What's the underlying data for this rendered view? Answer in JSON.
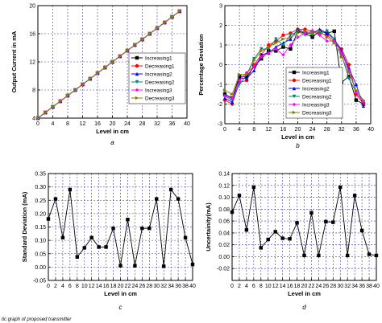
{
  "caption": "tic graph of proposed transmitter",
  "chart_data": [
    {
      "id": "a",
      "type": "line",
      "panel_label": "a",
      "xlabel": "Level in cm",
      "ylabel": "Output Current in mA",
      "xlim": [
        0,
        40
      ],
      "ylim": [
        4,
        20
      ],
      "xticks": [
        "0",
        "4",
        "8",
        "12",
        "16",
        "20",
        "24",
        "28",
        "32",
        "36",
        "40"
      ],
      "yticks": [
        "4",
        "8",
        "12",
        "16",
        "20"
      ],
      "grid": true,
      "legend_position": "bottom-right",
      "x": [
        0,
        2,
        4,
        6,
        8,
        10,
        12,
        14,
        16,
        18,
        20,
        22,
        24,
        26,
        28,
        30,
        32,
        34,
        36,
        38
      ],
      "series": [
        {
          "name": "Increasing1",
          "color": "#000000",
          "marker": "square",
          "values": [
            4.0,
            4.8,
            5.6,
            6.4,
            7.2,
            8.0,
            8.8,
            9.6,
            10.4,
            11.2,
            12.0,
            12.8,
            13.6,
            14.4,
            15.2,
            16.0,
            16.8,
            17.6,
            18.4,
            19.2
          ]
        },
        {
          "name": "Decreasing1",
          "color": "#ff0000",
          "marker": "circle",
          "values": [
            4.0,
            4.8,
            5.6,
            6.4,
            7.2,
            8.0,
            8.8,
            9.6,
            10.4,
            11.2,
            12.0,
            12.8,
            13.6,
            14.4,
            15.2,
            16.0,
            16.8,
            17.6,
            18.4,
            19.2
          ]
        },
        {
          "name": "Increasing2",
          "color": "#0000ff",
          "marker": "triangle-up",
          "values": [
            4.0,
            4.8,
            5.6,
            6.4,
            7.2,
            8.0,
            8.8,
            9.6,
            10.4,
            11.2,
            12.0,
            12.8,
            13.6,
            14.4,
            15.2,
            16.0,
            16.8,
            17.6,
            18.4,
            19.2
          ]
        },
        {
          "name": "Decreasing2",
          "color": "#008080",
          "marker": "triangle-down",
          "values": [
            4.0,
            4.8,
            5.6,
            6.4,
            7.2,
            8.0,
            8.8,
            9.6,
            10.4,
            11.2,
            12.0,
            12.8,
            13.6,
            14.4,
            15.2,
            16.0,
            16.8,
            17.6,
            18.4,
            19.2
          ]
        },
        {
          "name": "Increasing3",
          "color": "#ff00ff",
          "marker": "diamond",
          "values": [
            4.0,
            4.8,
            5.6,
            6.4,
            7.2,
            8.0,
            8.8,
            9.6,
            10.4,
            11.2,
            12.0,
            12.8,
            13.6,
            14.4,
            15.2,
            16.0,
            16.8,
            17.6,
            18.4,
            19.2
          ]
        },
        {
          "name": "Decreasing3",
          "color": "#808000",
          "marker": "triangle-right",
          "values": [
            4.0,
            4.8,
            5.6,
            6.4,
            7.2,
            8.0,
            8.8,
            9.6,
            10.4,
            11.2,
            12.0,
            12.8,
            13.6,
            14.4,
            15.2,
            16.0,
            16.8,
            17.6,
            18.4,
            19.2
          ]
        }
      ]
    },
    {
      "id": "b",
      "type": "line",
      "panel_label": "b",
      "xlabel": "Level in cm",
      "ylabel": "Percentage Deviation",
      "xlim": [
        0,
        40
      ],
      "ylim": [
        -3,
        3
      ],
      "xticks": [
        "0",
        "4",
        "8",
        "12",
        "16",
        "20",
        "24",
        "28",
        "32",
        "36",
        "40"
      ],
      "yticks": [
        "-3",
        "-2",
        "-1",
        "0",
        "1",
        "2",
        "3"
      ],
      "grid": true,
      "legend_position": "bottom-center",
      "x": [
        0,
        2,
        4,
        6,
        8,
        10,
        12,
        14,
        16,
        18,
        20,
        22,
        24,
        26,
        28,
        30,
        32,
        34,
        36,
        38
      ],
      "series": [
        {
          "name": "Increasing1",
          "color": "#000000",
          "marker": "square",
          "values": [
            -1.5,
            -1.7,
            -0.6,
            -0.6,
            -0.1,
            0.3,
            0.7,
            0.7,
            0.9,
            0.8,
            1.7,
            1.6,
            1.4,
            1.7,
            1.6,
            1.7,
            -0.9,
            -0.6,
            -1.8,
            -2.0
          ]
        },
        {
          "name": "Decreasing1",
          "color": "#ff0000",
          "marker": "circle",
          "values": [
            -1.8,
            -2.0,
            -0.9,
            -0.8,
            0.0,
            0.5,
            1.0,
            1.2,
            1.5,
            1.6,
            1.8,
            1.8,
            1.7,
            1.6,
            1.5,
            1.2,
            0.8,
            0.0,
            -1.5,
            -2.0
          ]
        },
        {
          "name": "Increasing2",
          "color": "#0000ff",
          "marker": "triangle-up",
          "values": [
            -1.7,
            -1.9,
            -0.7,
            -0.7,
            -0.3,
            0.5,
            0.6,
            0.9,
            1.1,
            1.3,
            1.8,
            1.6,
            1.6,
            1.8,
            1.6,
            1.3,
            0.7,
            -0.2,
            -1.0,
            -2.1
          ]
        },
        {
          "name": "Decreasing2",
          "color": "#008080",
          "marker": "triangle-down",
          "values": [
            -1.6,
            -1.8,
            -1.0,
            -0.5,
            0.3,
            0.8,
            0.8,
            1.3,
            1.0,
            1.5,
            1.7,
            1.5,
            1.5,
            1.6,
            1.7,
            1.3,
            0.5,
            -0.7,
            -1.4,
            -1.9
          ]
        },
        {
          "name": "Increasing3",
          "color": "#ff00ff",
          "marker": "diamond",
          "values": [
            -1.6,
            -1.7,
            -0.8,
            -0.4,
            -0.1,
            0.4,
            0.6,
            0.8,
            0.5,
            1.0,
            1.4,
            1.6,
            1.7,
            1.5,
            1.2,
            1.2,
            0.6,
            -0.3,
            -1.4,
            -1.9
          ]
        },
        {
          "name": "Decreasing3",
          "color": "#808000",
          "marker": "triangle-right",
          "values": [
            -1.3,
            -1.5,
            -0.5,
            -0.5,
            0.2,
            0.7,
            0.9,
            1.1,
            1.3,
            1.4,
            1.6,
            1.7,
            1.6,
            1.7,
            1.4,
            1.1,
            0.4,
            -0.4,
            -1.3,
            -1.8
          ]
        }
      ]
    },
    {
      "id": "c",
      "type": "line",
      "panel_label": "c",
      "xlabel": "Level in cm",
      "ylabel": "Standard Deviation (mA)",
      "xlim": [
        0,
        40
      ],
      "ylim": [
        -0.05,
        0.35
      ],
      "xticks": [
        "0",
        "2",
        "4",
        "6",
        "8",
        "10",
        "12",
        "14",
        "16",
        "18",
        "20",
        "22",
        "24",
        "26",
        "28",
        "30",
        "32",
        "34",
        "36",
        "38",
        "40"
      ],
      "yticks": [
        "-0.05",
        "0.00",
        "0.05",
        "0.10",
        "0.15",
        "0.20",
        "0.25",
        "0.30",
        "0.35"
      ],
      "grid": true,
      "x": [
        0,
        2,
        4,
        6,
        8,
        10,
        12,
        14,
        16,
        18,
        20,
        22,
        24,
        26,
        28,
        30,
        32,
        34,
        36,
        38,
        40
      ],
      "series": [
        {
          "name": "",
          "color": "#000000",
          "marker": "square",
          "values": [
            0.18,
            0.255,
            0.11,
            0.29,
            0.038,
            0.072,
            0.11,
            0.075,
            0.075,
            0.145,
            0.005,
            0.178,
            0.005,
            0.145,
            0.145,
            0.255,
            0.003,
            0.29,
            0.255,
            0.11,
            0.01
          ]
        }
      ]
    },
    {
      "id": "d",
      "type": "line",
      "panel_label": "d",
      "xlabel": "Level in cm",
      "ylabel": "Uncertainity(mA)",
      "xlim": [
        0,
        40
      ],
      "ylim": [
        -0.04,
        0.14
      ],
      "xticks": [
        "0",
        "2",
        "4",
        "6",
        "8",
        "10",
        "12",
        "14",
        "16",
        "18",
        "20",
        "22",
        "24",
        "26",
        "28",
        "30",
        "32",
        "34",
        "36",
        "38",
        "40"
      ],
      "yticks": [
        "-0.02",
        "0.00",
        "0.02",
        "0.04",
        "0.06",
        "0.08",
        "0.10",
        "0.12",
        "0.14"
      ],
      "grid": true,
      "x": [
        0,
        2,
        4,
        6,
        8,
        10,
        12,
        14,
        16,
        18,
        20,
        22,
        24,
        26,
        28,
        30,
        32,
        34,
        36,
        38,
        40
      ],
      "series": [
        {
          "name": "",
          "color": "#000000",
          "marker": "square",
          "values": [
            0.075,
            0.103,
            0.045,
            0.117,
            0.015,
            0.029,
            0.042,
            0.031,
            0.03,
            0.057,
            0.002,
            0.074,
            0.002,
            0.059,
            0.058,
            0.117,
            0.002,
            0.103,
            0.044,
            0.004,
            0.002
          ]
        }
      ]
    }
  ]
}
